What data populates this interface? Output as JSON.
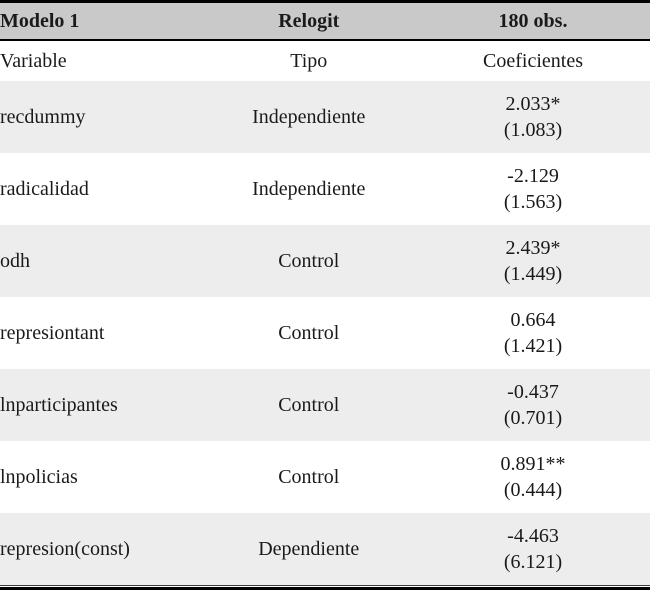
{
  "table": {
    "header": {
      "model": "Modelo 1",
      "method": "Relogit",
      "obs": "180 obs."
    },
    "subheader": {
      "variable": "Variable",
      "tipo": "Tipo",
      "coef": "Coeficientes"
    },
    "rows": [
      {
        "variable": "recdummy",
        "tipo": "Independiente",
        "coef": "2.033*",
        "se": "(1.083)"
      },
      {
        "variable": "radicalidad",
        "tipo": "Independiente",
        "coef": "-2.129",
        "se": "(1.563)"
      },
      {
        "variable": "odh",
        "tipo": "Control",
        "coef": "2.439*",
        "se": "(1.449)"
      },
      {
        "variable": "represiontant",
        "tipo": "Control",
        "coef": "0.664",
        "se": "(1.421)"
      },
      {
        "variable": "lnparticipantes",
        "tipo": "Control",
        "coef": "-0.437",
        "se": "(0.701)"
      },
      {
        "variable": "lnpolicias",
        "tipo": "Control",
        "coef": "0.891**",
        "se": "(0.444)"
      },
      {
        "variable": "represion(const)",
        "tipo": "Dependiente",
        "coef": "-4.463",
        "se": "(6.121)"
      }
    ],
    "colors": {
      "header_bg": "#c9c9c9",
      "stripe_bg": "#ededed",
      "text": "#1a1a1a",
      "rule": "#000000"
    }
  }
}
